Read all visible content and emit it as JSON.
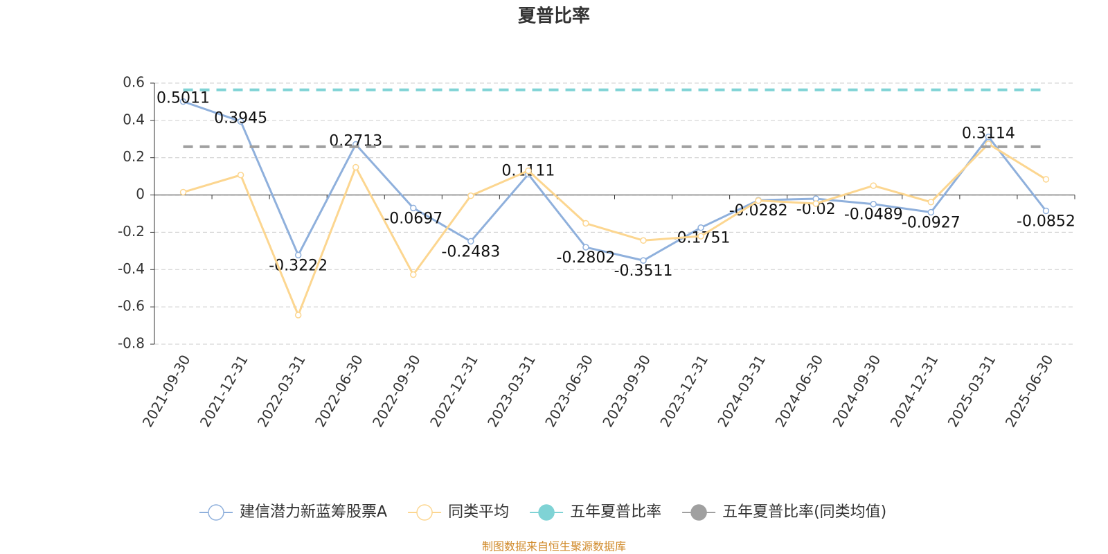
{
  "chart_data": {
    "type": "line",
    "title": "夏普比率",
    "categories": [
      "2021-09-30",
      "2021-12-31",
      "2022-03-31",
      "2022-06-30",
      "2022-09-30",
      "2022-12-31",
      "2023-03-31",
      "2023-06-30",
      "2023-09-30",
      "2023-12-31",
      "2024-03-31",
      "2024-06-30",
      "2024-09-30",
      "2024-12-31",
      "2025-03-31",
      "2025-06-30"
    ],
    "series": [
      {
        "name": "建信潜力新蓝筹股票A",
        "color": "#8fb0dc",
        "values": [
          0.5011,
          0.3945,
          -0.3222,
          0.2713,
          -0.0697,
          -0.2483,
          0.1111,
          -0.2802,
          -0.3511,
          -0.1751,
          -0.0282,
          -0.02,
          -0.0489,
          -0.0927,
          0.3114,
          -0.0852
        ],
        "data_labels": true
      },
      {
        "name": "同类平均",
        "color": "#fcd690",
        "values": [
          0.015,
          0.107,
          -0.644,
          0.149,
          -0.427,
          -0.004,
          0.13,
          -0.152,
          -0.244,
          -0.221,
          -0.03,
          -0.046,
          0.05,
          -0.038,
          0.274,
          0.084
        ]
      },
      {
        "name": "五年夏普比率",
        "color": "#7fd3d5",
        "value": 0.564,
        "style": "reference"
      },
      {
        "name": "五年夏普比率(同类均值)",
        "color": "#a0a0a0",
        "value": 0.259,
        "style": "reference"
      }
    ],
    "ylim": [
      -0.8,
      0.6
    ],
    "yticks": [
      0.6,
      0.4,
      0.2,
      0,
      -0.2,
      -0.4,
      -0.6,
      -0.8
    ],
    "grid": true,
    "footer": "制图数据来自恒生聚源数据库"
  }
}
